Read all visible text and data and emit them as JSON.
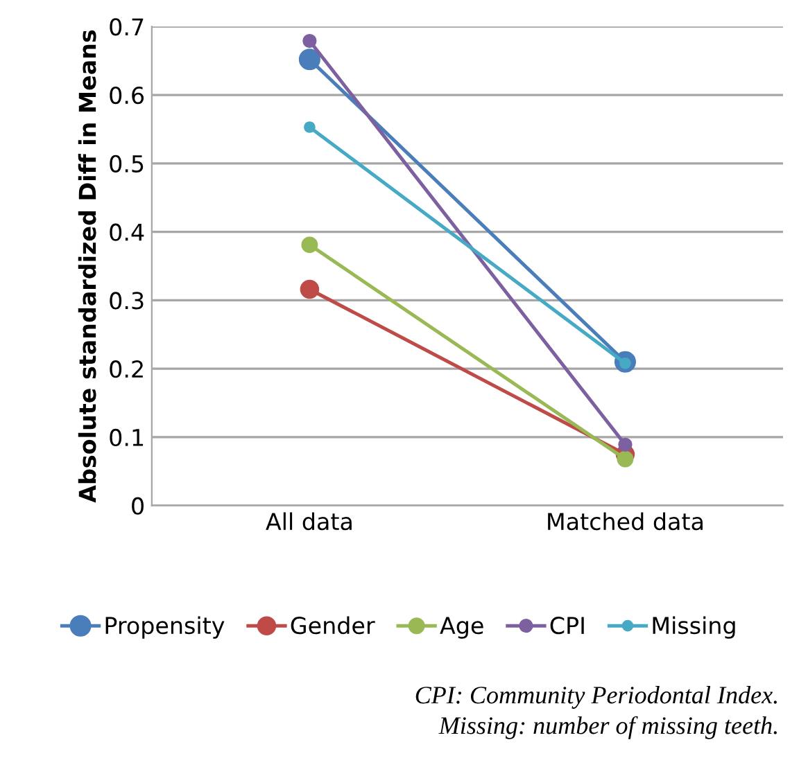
{
  "chart_data": {
    "type": "line",
    "ylabel": "Absolute standardized Diff in Means",
    "categories": [
      "All data",
      "Matched data"
    ],
    "series": [
      {
        "name": "Propensity",
        "color": "#4a7ebb",
        "values": [
          0.652,
          0.21
        ]
      },
      {
        "name": "Gender",
        "color": "#be4b48",
        "values": [
          0.316,
          0.075
        ]
      },
      {
        "name": "Age",
        "color": "#98b954",
        "values": [
          0.381,
          0.068
        ]
      },
      {
        "name": "CPI",
        "color": "#7d60a0",
        "values": [
          0.679,
          0.089
        ]
      },
      {
        "name": "Missing",
        "color": "#46aac5",
        "values": [
          0.553,
          0.208
        ]
      }
    ],
    "ylim": [
      0,
      0.7
    ],
    "yticks": [
      0,
      0.1,
      0.2,
      0.3,
      0.4,
      0.5,
      0.6,
      0.7
    ],
    "grid": "y",
    "legend": "bottom",
    "marker": "circle",
    "annotations": [
      "CPI: Community Periodontal Index.",
      "Missing: number of missing teeth."
    ]
  }
}
